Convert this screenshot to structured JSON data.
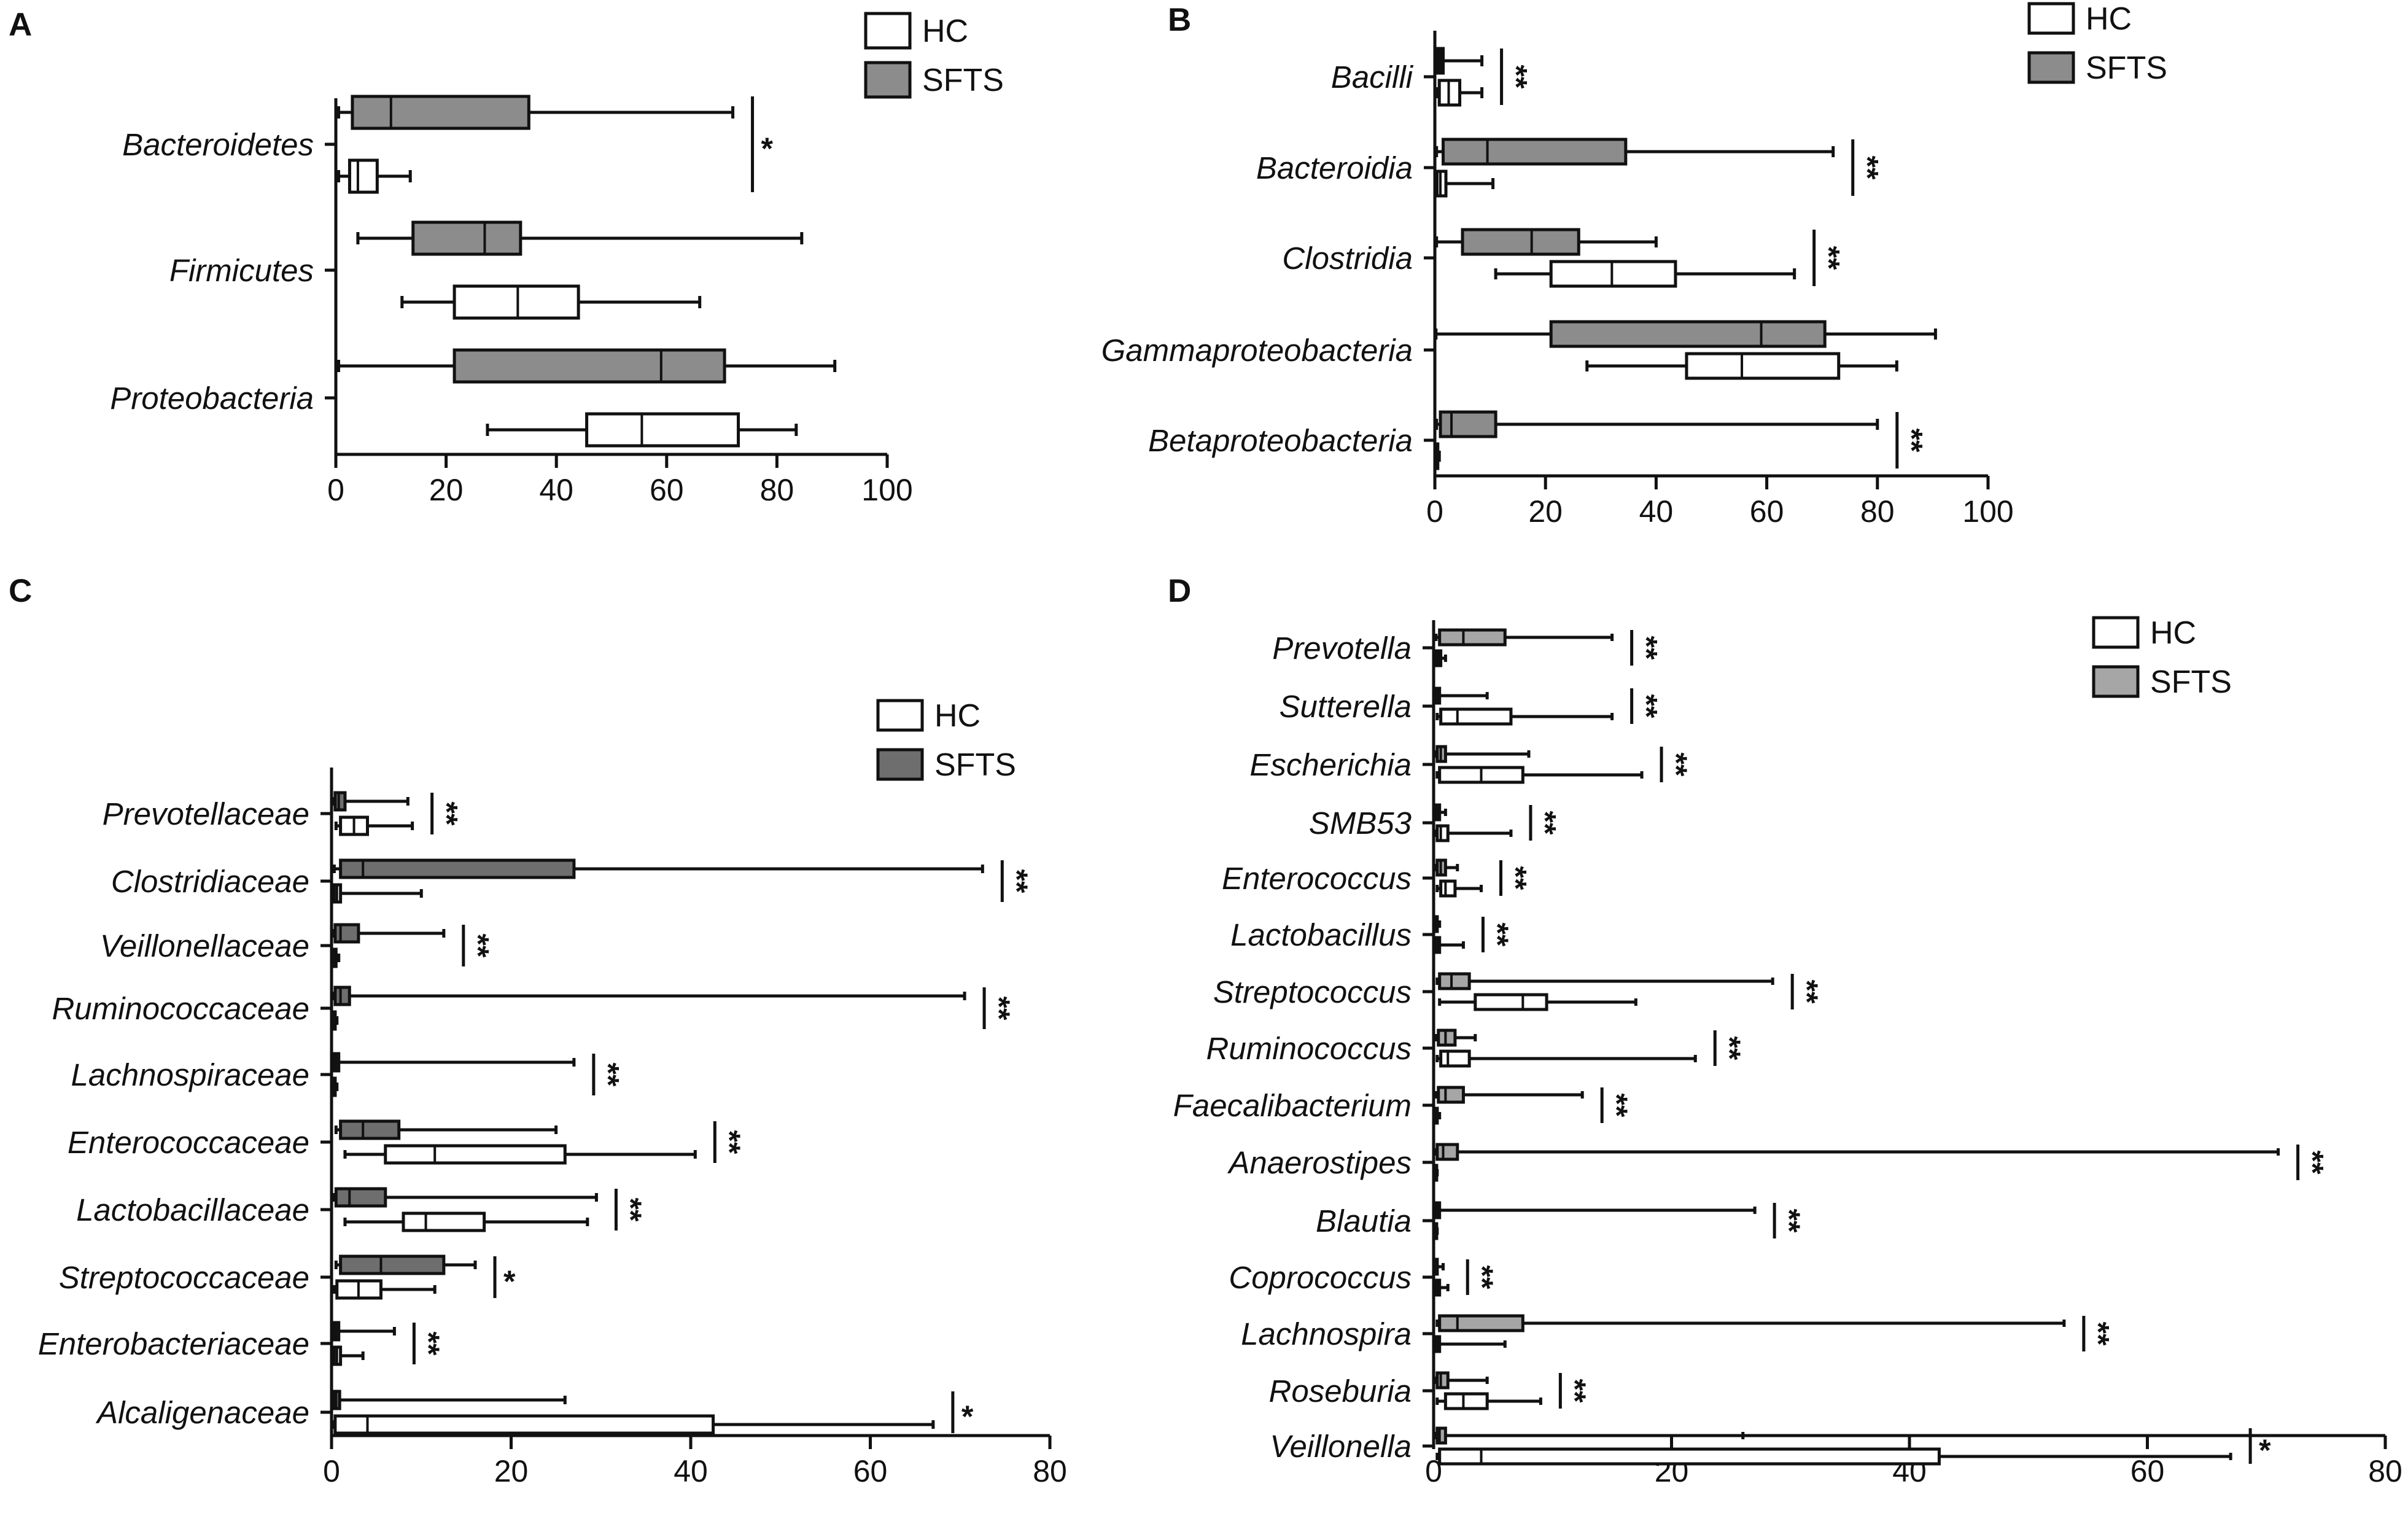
{
  "chart_data": [
    {
      "panel": "A",
      "type": "boxplot",
      "orientation": "horizontal",
      "xlim": [
        0,
        100
      ],
      "xticks": [
        0,
        20,
        40,
        60,
        80,
        100
      ],
      "legend": [
        {
          "name": "HC",
          "color": "#ffffff"
        },
        {
          "name": "SFTS",
          "color": "#8c8c8c"
        }
      ],
      "categories": [
        {
          "name": "Bacteroidetes",
          "sig": "*",
          "SFTS": {
            "min": 0.5,
            "q1": 3,
            "median": 10,
            "q3": 35,
            "max": 72
          },
          "HC": {
            "min": 0.5,
            "q1": 2.5,
            "median": 4,
            "q3": 7.5,
            "max": 13.5
          }
        },
        {
          "name": "Firmicutes",
          "sig": "",
          "SFTS": {
            "min": 4,
            "q1": 14,
            "median": 27,
            "q3": 33.5,
            "max": 84.5
          },
          "HC": {
            "min": 12,
            "q1": 21.5,
            "median": 33,
            "q3": 44,
            "max": 66
          }
        },
        {
          "name": "Proteobacteria",
          "sig": "",
          "SFTS": {
            "min": 0.5,
            "q1": 21.5,
            "median": 59,
            "q3": 70.5,
            "max": 90.5
          },
          "HC": {
            "min": 27.5,
            "q1": 45.5,
            "median": 55.5,
            "q3": 73,
            "max": 83.5
          }
        }
      ]
    },
    {
      "panel": "B",
      "type": "boxplot",
      "orientation": "horizontal",
      "xlim": [
        0,
        100
      ],
      "xticks": [
        0,
        20,
        40,
        60,
        80,
        100
      ],
      "legend": [
        {
          "name": "HC",
          "color": "#ffffff"
        },
        {
          "name": "SFTS",
          "color": "#8c8c8c"
        }
      ],
      "categories": [
        {
          "name": "Bacilli",
          "sig": "**",
          "SFTS": {
            "min": 0.3,
            "q1": 0.5,
            "median": 1,
            "q3": 1.5,
            "max": 8.5
          },
          "HC": {
            "min": 0.3,
            "q1": 0.8,
            "median": 2.5,
            "q3": 4.5,
            "max": 8.5
          }
        },
        {
          "name": "Bacteroidia",
          "sig": "**",
          "SFTS": {
            "min": 0.3,
            "q1": 1.5,
            "median": 9.5,
            "q3": 34.5,
            "max": 72
          },
          "HC": {
            "min": 0.2,
            "q1": 0.4,
            "median": 1,
            "q3": 2,
            "max": 10.5
          }
        },
        {
          "name": "Clostridia",
          "sig": "**",
          "SFTS": {
            "min": 0.3,
            "q1": 5,
            "median": 17.5,
            "q3": 26,
            "max": 40
          },
          "HC": {
            "min": 11,
            "q1": 21,
            "median": 32,
            "q3": 43.5,
            "max": 65
          }
        },
        {
          "name": "Gammaproteobacteria",
          "sig": "",
          "SFTS": {
            "min": 0.2,
            "q1": 21,
            "median": 59,
            "q3": 70.5,
            "max": 90.5
          },
          "HC": {
            "min": 27.5,
            "q1": 45.5,
            "median": 55.5,
            "q3": 73,
            "max": 83.5
          }
        },
        {
          "name": "Betaproteobacteria",
          "sig": "**",
          "SFTS": {
            "min": 0.3,
            "q1": 1,
            "median": 3,
            "q3": 11,
            "max": 80
          },
          "HC": {
            "min": 0.2,
            "q1": 0.2,
            "median": 0.3,
            "q3": 0.5,
            "max": 0.8
          }
        }
      ]
    },
    {
      "panel": "C",
      "type": "boxplot",
      "orientation": "horizontal",
      "xlim": [
        0,
        80
      ],
      "xticks": [
        0,
        20,
        40,
        60,
        80
      ],
      "legend": [
        {
          "name": "HC",
          "color": "#ffffff"
        },
        {
          "name": "SFTS",
          "color": "#6e6e6e"
        }
      ],
      "categories": [
        {
          "name": "Prevotellaceae",
          "sig": "**",
          "SFTS": {
            "min": 0.2,
            "q1": 0.4,
            "median": 0.8,
            "q3": 1.5,
            "max": 8.5
          },
          "HC": {
            "min": 0.5,
            "q1": 1,
            "median": 2.5,
            "q3": 4,
            "max": 9
          }
        },
        {
          "name": "Clostridiaceae",
          "sig": "**",
          "SFTS": {
            "min": 0.3,
            "q1": 1,
            "median": 3.5,
            "q3": 27,
            "max": 72.5
          },
          "HC": {
            "min": 0.2,
            "q1": 0.3,
            "median": 0.6,
            "q3": 1,
            "max": 10
          }
        },
        {
          "name": "Veillonellaceae",
          "sig": "**",
          "SFTS": {
            "min": 0.2,
            "q1": 0.4,
            "median": 1,
            "q3": 3,
            "max": 12.5
          },
          "HC": {
            "min": 0.1,
            "q1": 0.2,
            "median": 0.3,
            "q3": 0.5,
            "max": 0.8
          }
        },
        {
          "name": "Ruminococcaceae",
          "sig": "**",
          "SFTS": {
            "min": 0.2,
            "q1": 0.4,
            "median": 1,
            "q3": 2,
            "max": 70.5
          },
          "HC": {
            "min": 0.1,
            "q1": 0.2,
            "median": 0.3,
            "q3": 0.4,
            "max": 0.6
          }
        },
        {
          "name": "Lachnospiraceae",
          "sig": "**",
          "SFTS": {
            "min": 0.2,
            "q1": 0.3,
            "median": 0.5,
            "q3": 0.8,
            "max": 27
          },
          "HC": {
            "min": 0.1,
            "q1": 0.2,
            "median": 0.3,
            "q3": 0.4,
            "max": 0.6
          }
        },
        {
          "name": "Enterococcaceae",
          "sig": "**",
          "SFTS": {
            "min": 0.5,
            "q1": 1,
            "median": 3.5,
            "q3": 7.5,
            "max": 25
          },
          "HC": {
            "min": 1.5,
            "q1": 6,
            "median": 11.5,
            "q3": 26,
            "max": 40.5
          }
        },
        {
          "name": "Lactobacillaceae",
          "sig": "**",
          "SFTS": {
            "min": 0.3,
            "q1": 0.5,
            "median": 2,
            "q3": 6,
            "max": 29.5
          },
          "HC": {
            "min": 1.5,
            "q1": 8,
            "median": 10.5,
            "q3": 17,
            "max": 28.5
          }
        },
        {
          "name": "Streptococcaceae",
          "sig": "*",
          "SFTS": {
            "min": 0.5,
            "q1": 1,
            "median": 5.5,
            "q3": 12.5,
            "max": 16
          },
          "HC": {
            "min": 0.3,
            "q1": 0.6,
            "median": 3,
            "q3": 5.5,
            "max": 11.5
          }
        },
        {
          "name": "Enterobacteriaceae",
          "sig": "**",
          "SFTS": {
            "min": 0.2,
            "q1": 0.3,
            "median": 0.5,
            "q3": 0.8,
            "max": 7
          },
          "HC": {
            "min": 0.2,
            "q1": 0.3,
            "median": 0.6,
            "q3": 1,
            "max": 3.5
          }
        },
        {
          "name": "Alcaligenaceae",
          "sig": "*",
          "SFTS": {
            "min": 0.2,
            "q1": 0.3,
            "median": 0.5,
            "q3": 0.9,
            "max": 26
          },
          "HC": {
            "min": 0.2,
            "q1": 0.4,
            "median": 4,
            "q3": 42.5,
            "max": 67
          }
        }
      ]
    },
    {
      "panel": "D",
      "type": "boxplot",
      "orientation": "horizontal",
      "xlim": [
        0,
        80
      ],
      "xticks": [
        0,
        20,
        40,
        60,
        80
      ],
      "legend": [
        {
          "name": "HC",
          "color": "#ffffff"
        },
        {
          "name": "SFTS",
          "color": "#a6a6a6"
        }
      ],
      "categories": [
        {
          "name": "Prevotella",
          "sig": "**",
          "SFTS": {
            "min": 0.2,
            "q1": 0.5,
            "median": 2.5,
            "q3": 6,
            "max": 15
          },
          "HC": {
            "min": 0.1,
            "q1": 0.2,
            "median": 0.4,
            "q3": 0.6,
            "max": 1
          }
        },
        {
          "name": "Sutterella",
          "sig": "**",
          "SFTS": {
            "min": 0.1,
            "q1": 0.2,
            "median": 0.3,
            "q3": 0.5,
            "max": 4.5
          },
          "HC": {
            "min": 0.3,
            "q1": 0.6,
            "median": 2,
            "q3": 6.5,
            "max": 15
          }
        },
        {
          "name": "Escherichia",
          "sig": "**",
          "SFTS": {
            "min": 0.2,
            "q1": 0.3,
            "median": 0.6,
            "q3": 1,
            "max": 8
          },
          "HC": {
            "min": 0.3,
            "q1": 0.5,
            "median": 4,
            "q3": 7.5,
            "max": 17.5
          }
        },
        {
          "name": "SMB53",
          "sig": "**",
          "SFTS": {
            "min": 0.1,
            "q1": 0.2,
            "median": 0.3,
            "q3": 0.5,
            "max": 1
          },
          "HC": {
            "min": 0.2,
            "q1": 0.3,
            "median": 0.6,
            "q3": 1.2,
            "max": 6.5
          }
        },
        {
          "name": "Enterococcus",
          "sig": "**",
          "SFTS": {
            "min": 0.2,
            "q1": 0.3,
            "median": 0.6,
            "q3": 1,
            "max": 2
          },
          "HC": {
            "min": 0.3,
            "q1": 0.6,
            "median": 1,
            "q3": 1.8,
            "max": 4
          }
        },
        {
          "name": "Lactobacillus",
          "sig": "**",
          "SFTS": {
            "min": 0.1,
            "q1": 0.15,
            "median": 0.2,
            "q3": 0.3,
            "max": 0.5
          },
          "HC": {
            "min": 0.1,
            "q1": 0.2,
            "median": 0.3,
            "q3": 0.5,
            "max": 2.5
          }
        },
        {
          "name": "Streptococcus",
          "sig": "**",
          "SFTS": {
            "min": 0.3,
            "q1": 0.5,
            "median": 1.5,
            "q3": 3,
            "max": 28.5
          },
          "HC": {
            "min": 0.5,
            "q1": 3.5,
            "median": 7.5,
            "q3": 9.5,
            "max": 17
          }
        },
        {
          "name": "Ruminococcus",
          "sig": "**",
          "SFTS": {
            "min": 0.2,
            "q1": 0.4,
            "median": 1,
            "q3": 1.8,
            "max": 3.5
          },
          "HC": {
            "min": 0.3,
            "q1": 0.6,
            "median": 1.2,
            "q3": 3,
            "max": 22
          }
        },
        {
          "name": "Faecalibacterium",
          "sig": "**",
          "SFTS": {
            "min": 0.2,
            "q1": 0.4,
            "median": 1,
            "q3": 2.5,
            "max": 12.5
          },
          "HC": {
            "min": 0.1,
            "q1": 0.15,
            "median": 0.2,
            "q3": 0.3,
            "max": 0.5
          }
        },
        {
          "name": "Anaerostipes",
          "sig": "**",
          "SFTS": {
            "min": 0.2,
            "q1": 0.3,
            "median": 0.8,
            "q3": 2,
            "max": 71
          },
          "HC": {
            "min": 0.05,
            "q1": 0.1,
            "median": 0.15,
            "q3": 0.2,
            "max": 0.3
          }
        },
        {
          "name": "Blautia",
          "sig": "**",
          "SFTS": {
            "min": 0.1,
            "q1": 0.2,
            "median": 0.3,
            "q3": 0.5,
            "max": 27
          },
          "HC": {
            "min": 0.05,
            "q1": 0.1,
            "median": 0.15,
            "q3": 0.2,
            "max": 0.3
          }
        },
        {
          "name": "Coprococcus",
          "sig": "**",
          "SFTS": {
            "min": 0.1,
            "q1": 0.15,
            "median": 0.2,
            "q3": 0.3,
            "max": 0.8
          },
          "HC": {
            "min": 0.1,
            "q1": 0.2,
            "median": 0.3,
            "q3": 0.5,
            "max": 1.2
          }
        },
        {
          "name": "Lachnospira",
          "sig": "**",
          "SFTS": {
            "min": 0.3,
            "q1": 0.5,
            "median": 2,
            "q3": 7.5,
            "max": 53
          },
          "HC": {
            "min": 0.1,
            "q1": 0.2,
            "median": 0.3,
            "q3": 0.5,
            "max": 6
          }
        },
        {
          "name": "Roseburia",
          "sig": "**",
          "SFTS": {
            "min": 0.2,
            "q1": 0.3,
            "median": 0.6,
            "q3": 1.2,
            "max": 4.5
          },
          "HC": {
            "min": 0.3,
            "q1": 1,
            "median": 2.5,
            "q3": 4.5,
            "max": 9
          }
        },
        {
          "name": "Veillonella",
          "sig": "*",
          "SFTS": {
            "min": 0.2,
            "q1": 0.3,
            "median": 0.5,
            "q3": 1,
            "max": 26
          },
          "HC": {
            "min": 0.3,
            "q1": 0.5,
            "median": 4,
            "q3": 42.5,
            "max": 67
          }
        }
      ]
    }
  ]
}
